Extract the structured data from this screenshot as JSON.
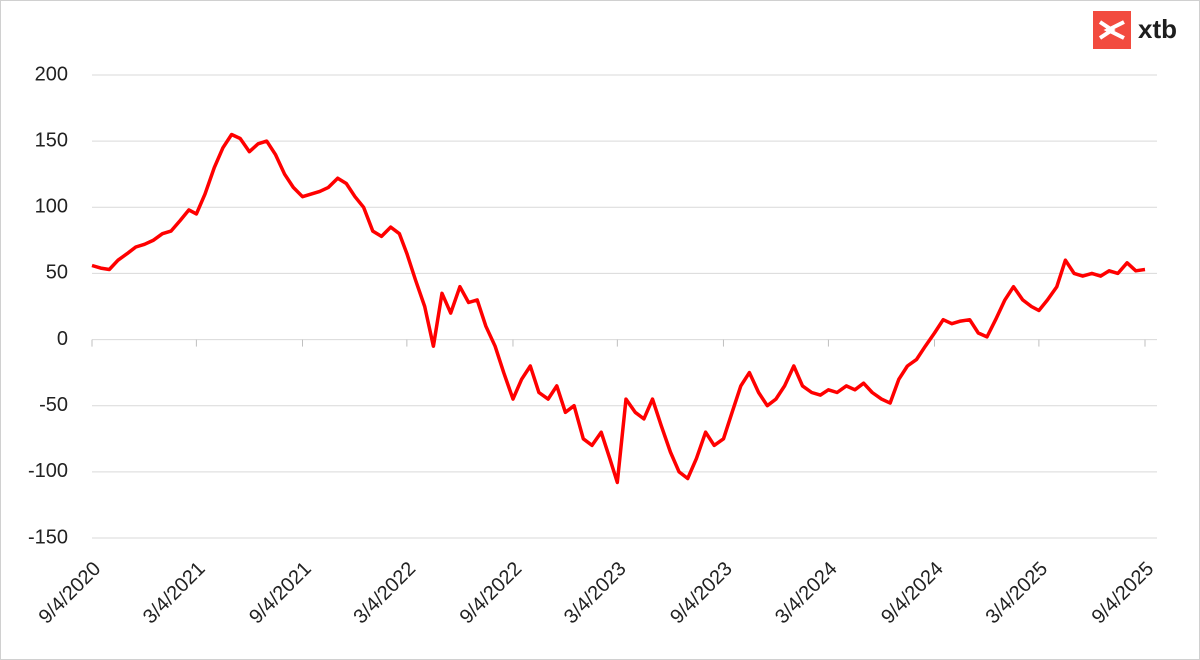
{
  "logo": "xtb",
  "chart_data": {
    "type": "line",
    "x": [
      "9/4/2020",
      "9/19/2020",
      "10/4/2020",
      "10/19/2020",
      "11/4/2020",
      "11/19/2020",
      "12/4/2020",
      "12/19/2020",
      "1/4/2021",
      "1/19/2021",
      "2/4/2021",
      "2/19/2021",
      "3/4/2021",
      "3/19/2021",
      "4/4/2021",
      "4/19/2021",
      "5/4/2021",
      "5/19/2021",
      "6/4/2021",
      "6/19/2021",
      "7/4/2021",
      "7/19/2021",
      "8/4/2021",
      "8/19/2021",
      "9/4/2021",
      "9/19/2021",
      "10/4/2021",
      "10/19/2021",
      "11/4/2021",
      "11/19/2021",
      "12/4/2021",
      "12/19/2021",
      "1/4/2022",
      "1/19/2022",
      "2/4/2022",
      "2/19/2022",
      "3/4/2022",
      "3/19/2022",
      "4/4/2022",
      "4/19/2022",
      "5/4/2022",
      "5/19/2022",
      "6/4/2022",
      "6/19/2022",
      "7/4/2022",
      "7/19/2022",
      "8/4/2022",
      "8/19/2022",
      "9/4/2022",
      "9/19/2022",
      "10/4/2022",
      "10/19/2022",
      "11/4/2022",
      "11/19/2022",
      "12/4/2022",
      "12/19/2022",
      "1/4/2023",
      "1/19/2023",
      "2/4/2023",
      "2/19/2023",
      "3/4/2023",
      "3/19/2023",
      "4/4/2023",
      "4/19/2023",
      "5/4/2023",
      "5/19/2023",
      "6/4/2023",
      "6/19/2023",
      "7/4/2023",
      "7/19/2023",
      "8/4/2023",
      "8/19/2023",
      "9/4/2023",
      "9/19/2023",
      "10/4/2023",
      "10/19/2023",
      "11/4/2023",
      "11/19/2023",
      "12/4/2023",
      "12/19/2023",
      "1/4/2024",
      "1/19/2024",
      "2/4/2024",
      "2/19/2024",
      "3/4/2024",
      "3/19/2024",
      "4/4/2024",
      "4/19/2024",
      "5/4/2024",
      "5/19/2024",
      "6/4/2024",
      "6/19/2024",
      "7/4/2024",
      "7/19/2024",
      "8/4/2024",
      "8/19/2024",
      "9/4/2024",
      "9/19/2024",
      "10/4/2024",
      "10/19/2024",
      "11/4/2024",
      "11/19/2024",
      "12/4/2024",
      "12/19/2024",
      "1/4/2025",
      "1/19/2025",
      "2/4/2025",
      "2/19/2025",
      "3/4/2025",
      "3/19/2025",
      "4/4/2025",
      "4/19/2025",
      "5/4/2025",
      "5/19/2025",
      "6/4/2025",
      "6/19/2025",
      "7/4/2025",
      "7/19/2025",
      "8/4/2025",
      "8/19/2025",
      "9/4/2025"
    ],
    "series": [
      {
        "color": "#ff0000",
        "values": [
          56,
          54,
          53,
          60,
          65,
          70,
          72,
          75,
          80,
          82,
          90,
          98,
          95,
          110,
          130,
          145,
          155,
          152,
          142,
          148,
          150,
          140,
          125,
          115,
          108,
          110,
          112,
          115,
          122,
          118,
          108,
          100,
          82,
          78,
          85,
          80,
          65,
          45,
          25,
          -5,
          35,
          20,
          40,
          28,
          30,
          10,
          -5,
          -25,
          -45,
          -30,
          -20,
          -40,
          -45,
          -35,
          -55,
          -50,
          -75,
          -80,
          -70,
          -90,
          -108,
          -45,
          -55,
          -60,
          -45,
          -65,
          -85,
          -100,
          -105,
          -90,
          -70,
          -80,
          -75,
          -55,
          -35,
          -25,
          -40,
          -50,
          -45,
          -35,
          -20,
          -35,
          -40,
          -42,
          -38,
          -40,
          -35,
          -38,
          -33,
          -40,
          -45,
          -48,
          -30,
          -20,
          -15,
          -5,
          5,
          15,
          12,
          14,
          15,
          5,
          2,
          15,
          30,
          40,
          30,
          25,
          22,
          30,
          40,
          60,
          50,
          48,
          50,
          48,
          52,
          50,
          58,
          52,
          53
        ]
      }
    ],
    "xlim": [
      "9/4/2020",
      "9/4/2025"
    ],
    "xticks": [
      "9/4/2020",
      "3/4/2021",
      "9/4/2021",
      "3/4/2022",
      "9/4/2022",
      "3/4/2023",
      "9/4/2023",
      "3/4/2024",
      "9/4/2024",
      "3/4/2025",
      "9/4/2025"
    ],
    "ylim": [
      -150,
      200
    ],
    "yticks": [
      -150,
      -100,
      -50,
      0,
      50,
      100,
      150,
      200
    ],
    "grid": true
  }
}
